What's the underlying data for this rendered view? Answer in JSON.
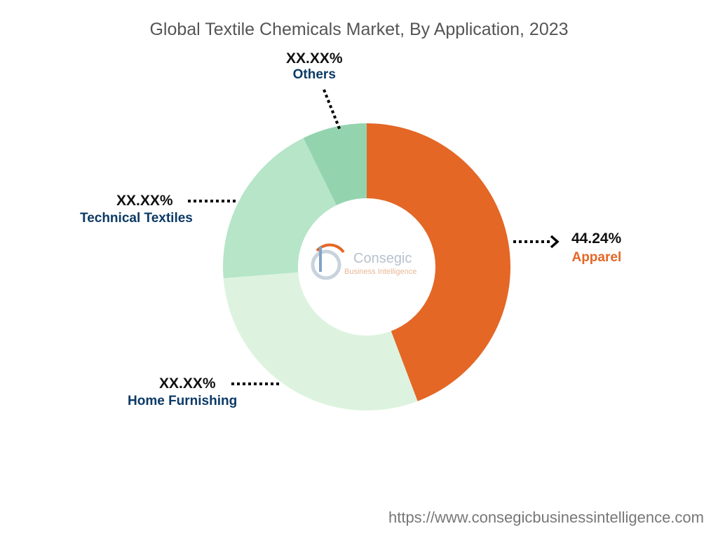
{
  "chart_data": {
    "type": "pie",
    "variant": "donut",
    "title": "Global Textile Chemicals Market, By Application, 2023",
    "slices": [
      {
        "label": "Apparel",
        "display_value": "44.24%",
        "value": 44.24,
        "color": "#E46726",
        "label_color": "#E46726"
      },
      {
        "label": "Home Furnishing",
        "display_value": "XX.XX%",
        "value": 29.5,
        "color": "#DDF3DF",
        "label_color": "#0B3A66"
      },
      {
        "label": "Technical Textiles",
        "display_value": "XX.XX%",
        "value": 19.0,
        "color": "#B6E5C8",
        "label_color": "#0B3A66"
      },
      {
        "label": "Others",
        "display_value": "XX.XX%",
        "value": 7.26,
        "color": "#93D4AF",
        "label_color": "#0B3A66"
      }
    ]
  },
  "logo": {
    "name": "Consegic",
    "tagline": "Business Intelligence"
  },
  "source_url": "https://www.consegicbusinessintelligence.com"
}
